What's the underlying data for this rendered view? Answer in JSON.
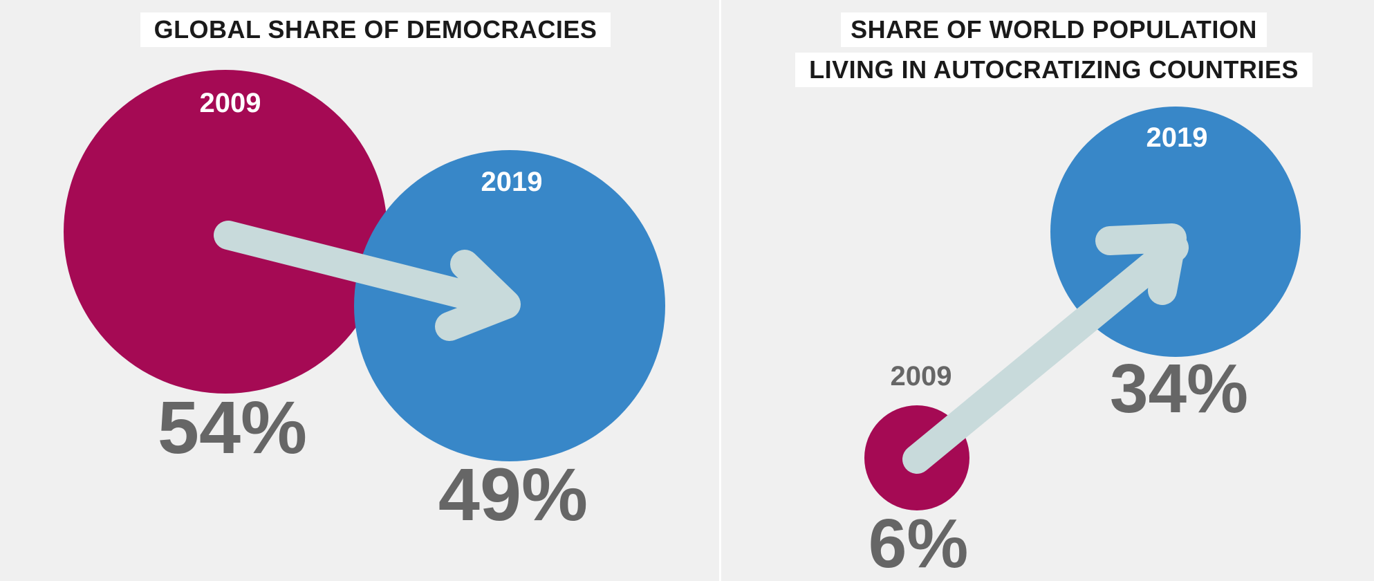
{
  "colors": {
    "background": "#f0f0f0",
    "circle_2009": "#a50a54",
    "circle_2019": "#3887c8",
    "arrow": "#c8dadb",
    "percent_text": "#666666",
    "year_on_circle": "#ffffff",
    "year_outside": "#666666",
    "title_text": "#1a1a1a"
  },
  "icons": {
    "trend_arrow": "arrow-icon"
  },
  "chart_data": [
    {
      "type": "bubble",
      "title": "GLOBAL SHARE OF DEMOCRACIES",
      "unit": "%",
      "points": [
        {
          "year": "2009",
          "value": 54,
          "label": "54%"
        },
        {
          "year": "2019",
          "value": 49,
          "label": "49%"
        }
      ],
      "trend": "decrease"
    },
    {
      "type": "bubble",
      "title": "SHARE OF WORLD POPULATION LIVING IN AUTOCRATIZING COUNTRIES",
      "title_lines": [
        "SHARE OF WORLD POPULATION",
        "LIVING IN AUTOCRATIZING COUNTRIES"
      ],
      "unit": "%",
      "points": [
        {
          "year": "2009",
          "value": 6,
          "label": "6%"
        },
        {
          "year": "2019",
          "value": 34,
          "label": "34%"
        }
      ],
      "trend": "increase"
    }
  ]
}
